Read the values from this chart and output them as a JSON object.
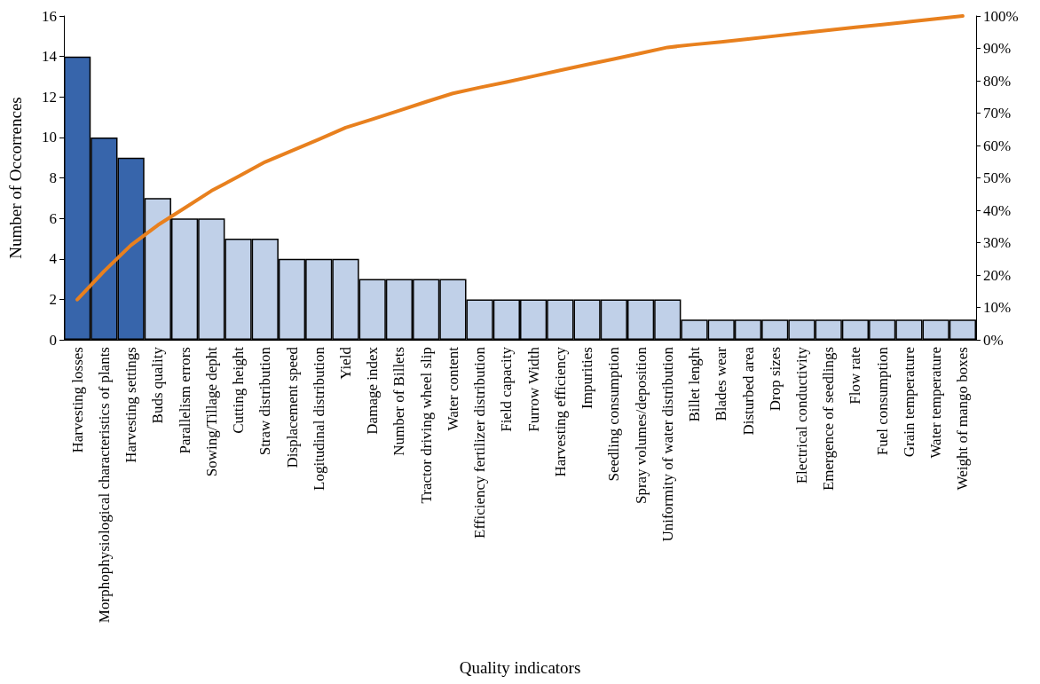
{
  "chart_data": {
    "type": "bar",
    "xlabel": "Quality indicators",
    "ylabel": "Number of Occorrences",
    "categories": [
      "Harvesting losses",
      "Morphophysiological characteristics of plants",
      "Harvesting settings",
      "Buds quality",
      "Parallelism errors",
      "Sowing/Tillage depht",
      "Cutting height",
      "Straw distribution",
      "Displacement speed",
      "Logitudinal distribution",
      "Yield",
      "Damage index",
      "Number of Billets",
      "Tractor driving wheel slip",
      "Water content",
      "Efficiency fertilizer distribution",
      "Field capacity",
      "Furrow Width",
      "Harvesting efficiency",
      "Impurities",
      "Seedling consumption",
      "Spray volumes/deposition",
      "Uniformity of water distribution",
      "Billet lenght",
      "Blades wear",
      "Disturbed area",
      "Drop sizes",
      "Electrical conductivity",
      "Emergence of seedlings",
      "Flow rate",
      "Fuel consumption",
      "Grain temperature",
      "Water temperature",
      "Weight of mango boxes"
    ],
    "series": [
      {
        "values": [
          14,
          10,
          9,
          7,
          6,
          6,
          5,
          5,
          4,
          4,
          4,
          3,
          3,
          3,
          3,
          2,
          2,
          2,
          2,
          2,
          2,
          2,
          2,
          1,
          1,
          1,
          1,
          1,
          1,
          1,
          1,
          1,
          1,
          1
        ],
        "colors": [
          "#3765ab",
          "#3765ab",
          "#3765ab",
          "#c0d0e8",
          "#c0d0e8",
          "#c0d0e8",
          "#c0d0e8",
          "#c0d0e8",
          "#c0d0e8",
          "#c0d0e8",
          "#c0d0e8",
          "#c0d0e8",
          "#c0d0e8",
          "#c0d0e8",
          "#c0d0e8",
          "#c0d0e8",
          "#c0d0e8",
          "#c0d0e8",
          "#c0d0e8",
          "#c0d0e8",
          "#c0d0e8",
          "#c0d0e8",
          "#c0d0e8",
          "#c0d0e8",
          "#c0d0e8",
          "#c0d0e8",
          "#c0d0e8",
          "#c0d0e8",
          "#c0d0e8",
          "#c0d0e8",
          "#c0d0e8",
          "#c0d0e8",
          "#c0d0e8",
          "#c0d0e8"
        ]
      },
      {
        "type": "line",
        "axis": "y2",
        "color": "#e8801e",
        "values": [
          12.4,
          21.2,
          29.2,
          35.4,
          40.7,
          46.0,
          50.4,
          54.9,
          58.4,
          61.9,
          65.5,
          68.1,
          70.8,
          73.5,
          76.1,
          77.9,
          79.6,
          81.4,
          83.2,
          85.0,
          86.7,
          88.5,
          90.3,
          91.2,
          92.0,
          92.9,
          93.8,
          94.7,
          95.6,
          96.5,
          97.3,
          98.2,
          99.1,
          100
        ]
      }
    ],
    "ylim": [
      0,
      16
    ],
    "yticks": [
      0,
      2,
      4,
      6,
      8,
      10,
      12,
      14,
      16
    ],
    "y2lim": [
      0,
      100
    ],
    "y2ticks": [
      {
        "value": 0,
        "label": "0%"
      },
      {
        "value": 10,
        "label": "10%"
      },
      {
        "value": 20,
        "label": "20%"
      },
      {
        "value": 30,
        "label": "30%"
      },
      {
        "value": 40,
        "label": "40%"
      },
      {
        "value": 50,
        "label": "50%"
      },
      {
        "value": 60,
        "label": "60%"
      },
      {
        "value": 70,
        "label": "70%"
      },
      {
        "value": 80,
        "label": "80%"
      },
      {
        "value": 90,
        "label": "90%"
      },
      {
        "value": 100,
        "label": "100%"
      }
    ],
    "grid": false,
    "marker": "none",
    "line_style": "solid"
  }
}
